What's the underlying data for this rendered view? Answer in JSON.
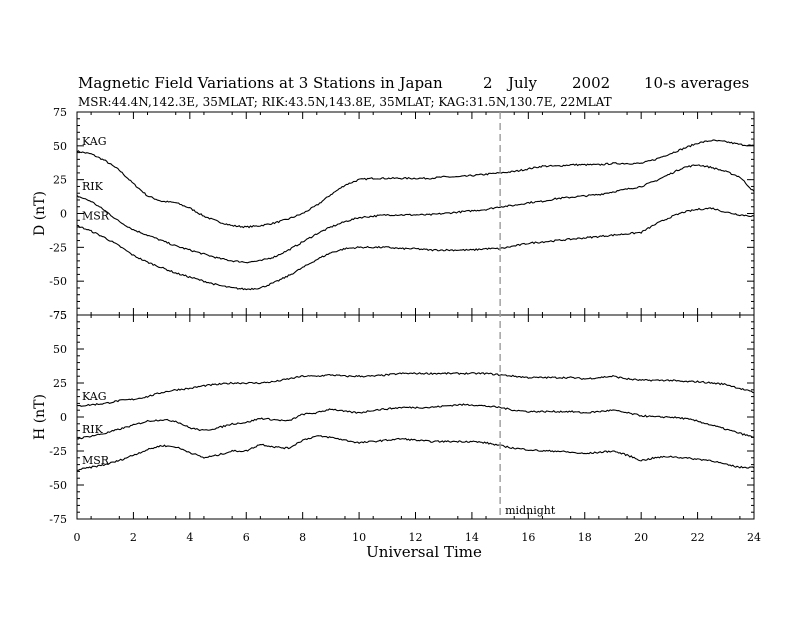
{
  "chart_data": {
    "type": "line",
    "title_parts": [
      "Magnetic Field Variations at 3 Stations in Japan",
      "2",
      "July",
      "2002",
      "10-s averages"
    ],
    "subtitle": "MSR:44.4N,142.3E, 35MLAT;   RIK:43.5N,143.8E, 35MLAT;   KAG:31.5N,130.7E, 22MLAT",
    "xlabel": "Universal Time",
    "xlim": [
      0,
      24
    ],
    "x_ticks": [
      0,
      2,
      4,
      6,
      8,
      10,
      12,
      14,
      16,
      18,
      20,
      22,
      24
    ],
    "marker": {
      "x": 15,
      "label": "midnight",
      "color": "#9a9a9a"
    },
    "panels": [
      {
        "ylabel": "D (nT)",
        "ylim": [
          -75,
          75
        ],
        "y_ticks": [
          75,
          50,
          25,
          0,
          -25,
          -50,
          -75
        ],
        "series": [
          {
            "name": "KAG",
            "x": [
              0,
              0.5,
              1,
              1.5,
              2,
              2.5,
              3,
              3.5,
              4,
              4.5,
              5,
              5.5,
              6,
              6.5,
              7,
              7.5,
              8,
              8.5,
              9,
              9.5,
              10,
              10.5,
              11,
              11.5,
              12,
              12.5,
              13,
              13.5,
              14,
              14.5,
              15,
              15.5,
              16,
              16.5,
              17,
              17.5,
              18,
              18.5,
              19,
              19.5,
              20,
              20.5,
              21,
              21.5,
              22,
              22.5,
              23,
              23.5,
              24
            ],
            "values": [
              46,
              44,
              39,
              32,
              22,
              13,
              9,
              8,
              4,
              -2,
              -6,
              -9,
              -10,
              -9,
              -7,
              -4,
              0,
              6,
              14,
              21,
              25,
              26,
              26,
              26,
              26,
              26,
              27,
              27,
              28,
              29,
              30,
              31,
              33,
              35,
              35,
              36,
              36,
              36,
              37,
              37,
              37,
              40,
              44,
              48,
              52,
              54,
              53,
              51,
              50
            ]
          },
          {
            "name": "RIK",
            "x": [
              0,
              0.5,
              1,
              1.5,
              2,
              2.5,
              3,
              3.5,
              4,
              4.5,
              5,
              5.5,
              6,
              6.5,
              7,
              7.5,
              8,
              8.5,
              9,
              9.5,
              10,
              10.5,
              11,
              11.5,
              12,
              12.5,
              13,
              13.5,
              14,
              14.5,
              15,
              15.5,
              16,
              16.5,
              17,
              17.5,
              18,
              18.5,
              19,
              19.5,
              20,
              20.5,
              21,
              21.5,
              22,
              22.5,
              23,
              23.5,
              24
            ],
            "values": [
              13,
              9,
              2,
              -6,
              -12,
              -16,
              -20,
              -24,
              -27,
              -30,
              -33,
              -35,
              -36,
              -35,
              -32,
              -27,
              -21,
              -15,
              -10,
              -6,
              -3,
              -2,
              -1,
              -1,
              -1,
              -1,
              0,
              1,
              2,
              3,
              5,
              6,
              8,
              9,
              11,
              12,
              13,
              14,
              16,
              18,
              20,
              24,
              29,
              34,
              36,
              34,
              31,
              27,
              16
            ]
          },
          {
            "name": "MSR",
            "x": [
              0,
              0.5,
              1,
              1.5,
              2,
              2.5,
              3,
              3.5,
              4,
              4.5,
              5,
              5.5,
              6,
              6.5,
              7,
              7.5,
              8,
              8.5,
              9,
              9.5,
              10,
              10.5,
              11,
              11.5,
              12,
              12.5,
              13,
              13.5,
              14,
              14.5,
              15,
              15.5,
              16,
              16.5,
              17,
              17.5,
              18,
              18.5,
              19,
              19.5,
              20,
              20.5,
              21,
              21.5,
              22,
              22.5,
              23,
              23.5,
              24
            ],
            "values": [
              -9,
              -13,
              -18,
              -24,
              -31,
              -36,
              -40,
              -44,
              -47,
              -50,
              -53,
              -55,
              -56,
              -55,
              -51,
              -46,
              -40,
              -34,
              -29,
              -26,
              -25,
              -25,
              -25,
              -26,
              -26,
              -27,
              -27,
              -27,
              -27,
              -26,
              -26,
              -24,
              -22,
              -21,
              -20,
              -19,
              -18,
              -17,
              -16,
              -15,
              -14,
              -8,
              -3,
              1,
              3,
              4,
              1,
              -1,
              -2
            ]
          }
        ]
      },
      {
        "ylabel": "H (nT)",
        "ylim": [
          -75,
          75
        ],
        "y_ticks": [
          75,
          50,
          25,
          0,
          -25,
          -50,
          -75
        ],
        "series": [
          {
            "name": "KAG",
            "x": [
              0,
              0.5,
              1,
              1.5,
              2,
              2.5,
              3,
              3.5,
              4,
              4.5,
              5,
              5.5,
              6,
              6.5,
              7,
              7.5,
              8,
              8.5,
              9,
              9.5,
              10,
              10.5,
              11,
              11.5,
              12,
              12.5,
              13,
              13.5,
              14,
              14.5,
              15,
              15.5,
              16,
              16.5,
              17,
              17.5,
              18,
              18.5,
              19,
              19.5,
              20,
              20.5,
              21,
              21.5,
              22,
              22.5,
              23,
              23.5,
              24
            ],
            "values": [
              8,
              9,
              10,
              12,
              13,
              15,
              18,
              20,
              21,
              23,
              24,
              25,
              25,
              25,
              26,
              28,
              30,
              30,
              31,
              30,
              30,
              30,
              31,
              32,
              32,
              32,
              32,
              32,
              32,
              32,
              31,
              30,
              29,
              29,
              29,
              29,
              28,
              29,
              30,
              28,
              27,
              27,
              27,
              26,
              26,
              25,
              24,
              21,
              18
            ]
          },
          {
            "name": "RIK",
            "x": [
              0,
              0.5,
              1,
              1.5,
              2,
              2.5,
              3,
              3.5,
              4,
              4.5,
              5,
              5.5,
              6,
              6.5,
              7,
              7.5,
              8,
              8.5,
              9,
              9.5,
              10,
              10.5,
              11,
              11.5,
              12,
              12.5,
              13,
              13.5,
              14,
              14.5,
              15,
              15.5,
              16,
              16.5,
              17,
              17.5,
              18,
              18.5,
              19,
              19.5,
              20,
              20.5,
              21,
              21.5,
              22,
              22.5,
              23,
              23.5,
              24
            ],
            "values": [
              -16,
              -14,
              -12,
              -9,
              -6,
              -3,
              -2,
              -3,
              -8,
              -10,
              -8,
              -5,
              -4,
              -1,
              -2,
              -3,
              2,
              3,
              6,
              4,
              3,
              5,
              6,
              7,
              7,
              7,
              8,
              9,
              9,
              8,
              7,
              5,
              4,
              4,
              4,
              4,
              3,
              4,
              5,
              3,
              1,
              0,
              0,
              -1,
              -3,
              -6,
              -9,
              -12,
              -15
            ]
          },
          {
            "name": "MSR",
            "x": [
              0,
              0.5,
              1,
              1.5,
              2,
              2.5,
              3,
              3.5,
              4,
              4.5,
              5,
              5.5,
              6,
              6.5,
              7,
              7.5,
              8,
              8.5,
              9,
              9.5,
              10,
              10.5,
              11,
              11.5,
              12,
              12.5,
              13,
              13.5,
              14,
              14.5,
              15,
              15.5,
              16,
              16.5,
              17,
              17.5,
              18,
              18.5,
              19,
              19.5,
              20,
              20.5,
              21,
              21.5,
              22,
              22.5,
              23,
              23.5,
              24
            ],
            "values": [
              -39,
              -37,
              -35,
              -32,
              -28,
              -24,
              -21,
              -22,
              -26,
              -30,
              -28,
              -25,
              -25,
              -20,
              -22,
              -23,
              -17,
              -14,
              -15,
              -17,
              -19,
              -18,
              -17,
              -16,
              -17,
              -18,
              -18,
              -18,
              -18,
              -19,
              -21,
              -23,
              -24,
              -25,
              -25,
              -26,
              -27,
              -26,
              -25,
              -28,
              -32,
              -30,
              -29,
              -30,
              -31,
              -32,
              -35,
              -37,
              -37
            ]
          }
        ]
      }
    ]
  }
}
